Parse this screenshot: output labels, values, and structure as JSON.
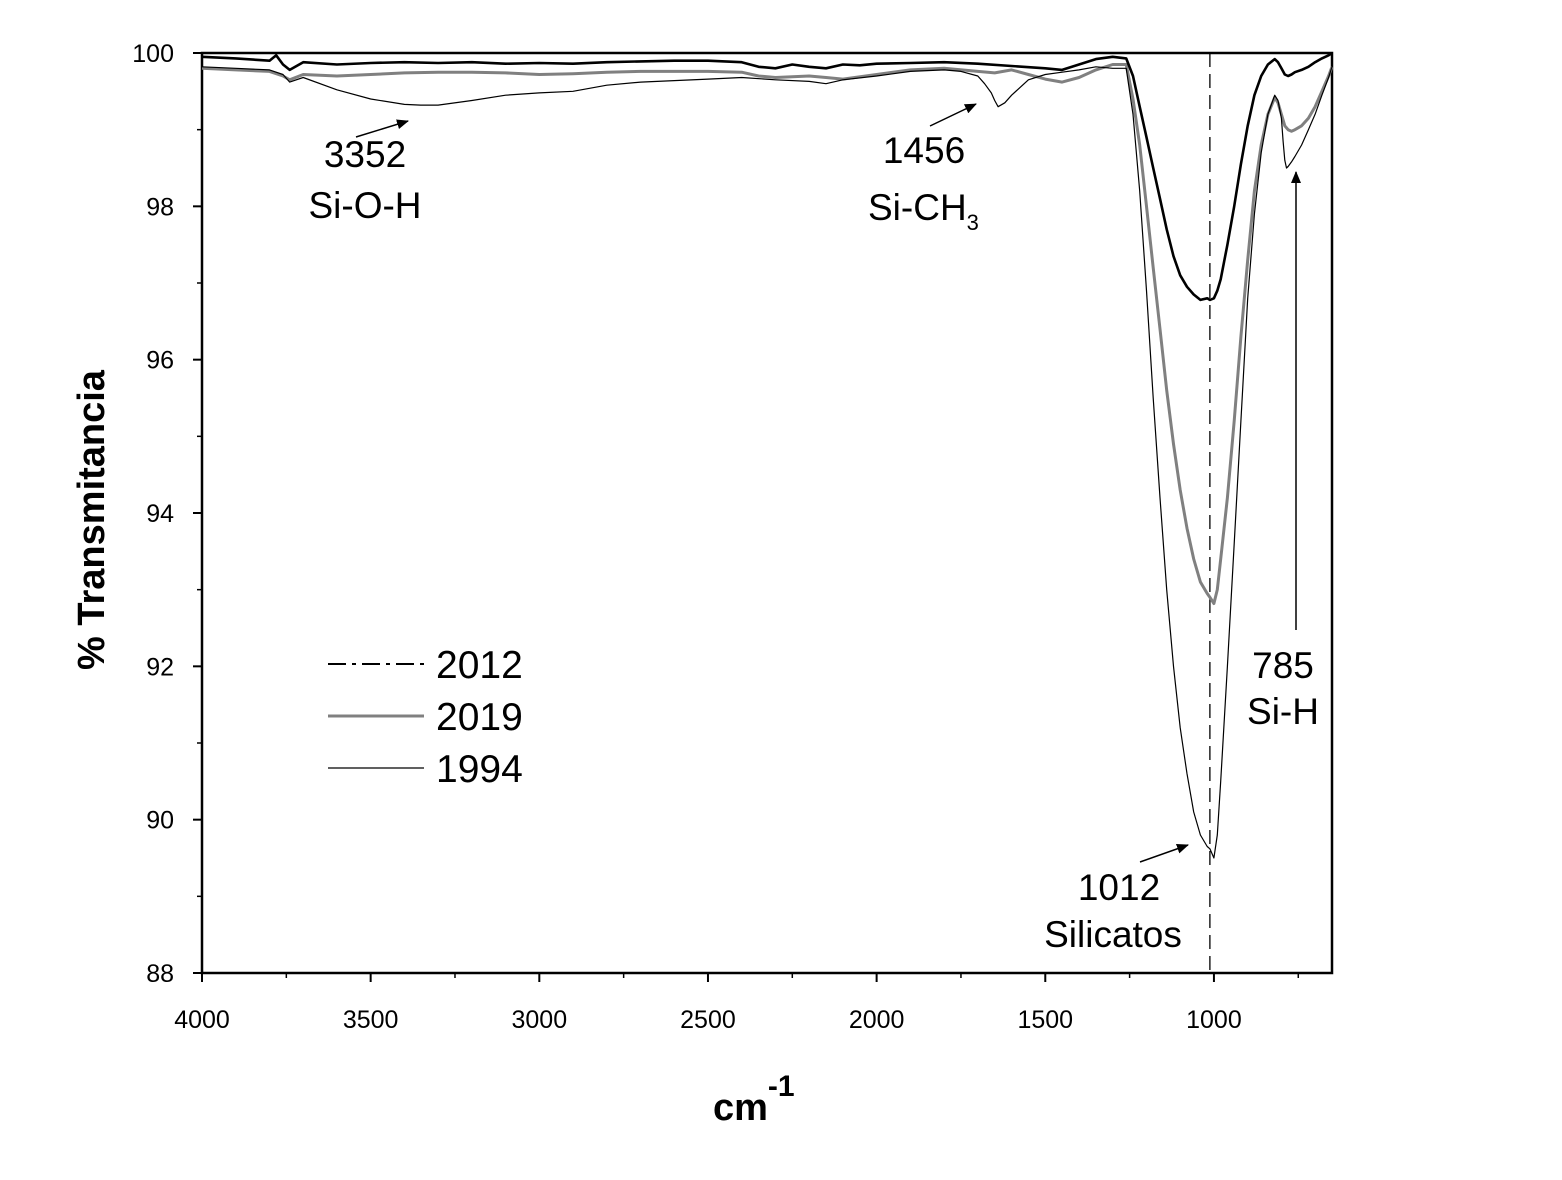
{
  "chart_data": {
    "type": "line",
    "title": "",
    "xlabel": "cm",
    "xlabel_superscript": "-1",
    "ylabel": "% Transmitancia",
    "xlim": [
      4000,
      650
    ],
    "x_reversed": true,
    "ylim": [
      88,
      100
    ],
    "x_ticks": [
      4000,
      3500,
      3000,
      2500,
      2000,
      1500,
      1000
    ],
    "x_tick_labels": [
      "4000",
      "3500",
      "3000",
      "2500",
      "2000",
      "1500",
      "1000"
    ],
    "y_ticks": [
      88,
      90,
      92,
      94,
      96,
      98,
      100
    ],
    "y_tick_labels": [
      "88",
      "90",
      "92",
      "94",
      "96",
      "98",
      "100"
    ],
    "grid": false,
    "legend_position": "left-lower",
    "series": [
      {
        "name": "2012",
        "color": "#000000",
        "line_style": "dash-dot-legend",
        "x": [
          4000,
          3900,
          3800,
          3780,
          3760,
          3740,
          3700,
          3600,
          3500,
          3400,
          3300,
          3200,
          3100,
          3000,
          2900,
          2800,
          2700,
          2600,
          2500,
          2400,
          2350,
          2300,
          2250,
          2200,
          2150,
          2100,
          2050,
          2000,
          1900,
          1800,
          1700,
          1600,
          1500,
          1450,
          1400,
          1350,
          1300,
          1260,
          1240,
          1220,
          1200,
          1180,
          1160,
          1140,
          1120,
          1100,
          1080,
          1060,
          1040,
          1020,
          1012,
          1000,
          990,
          980,
          960,
          940,
          920,
          900,
          880,
          860,
          840,
          820,
          810,
          800,
          790,
          780,
          770,
          760,
          740,
          720,
          700,
          680,
          660,
          650
        ],
        "y": [
          99.95,
          99.93,
          99.9,
          99.97,
          99.85,
          99.78,
          99.88,
          99.85,
          99.87,
          99.88,
          99.87,
          99.88,
          99.86,
          99.87,
          99.86,
          99.88,
          99.89,
          99.9,
          99.9,
          99.88,
          99.82,
          99.8,
          99.85,
          99.82,
          99.8,
          99.85,
          99.84,
          99.86,
          99.87,
          99.88,
          99.86,
          99.83,
          99.8,
          99.78,
          99.85,
          99.92,
          99.95,
          99.93,
          99.7,
          99.3,
          98.9,
          98.5,
          98.1,
          97.7,
          97.35,
          97.1,
          96.95,
          96.85,
          96.78,
          96.8,
          96.78,
          96.8,
          96.9,
          97.05,
          97.5,
          98.0,
          98.55,
          99.05,
          99.45,
          99.7,
          99.85,
          99.92,
          99.88,
          99.8,
          99.72,
          99.7,
          99.72,
          99.75,
          99.78,
          99.82,
          99.88,
          99.93,
          99.97,
          100.0
        ]
      },
      {
        "name": "2019",
        "color": "#808080",
        "line_style": "solid-thick",
        "x": [
          4000,
          3900,
          3800,
          3760,
          3740,
          3700,
          3600,
          3500,
          3400,
          3300,
          3200,
          3100,
          3000,
          2900,
          2800,
          2700,
          2600,
          2500,
          2400,
          2350,
          2300,
          2200,
          2150,
          2100,
          2000,
          1900,
          1800,
          1700,
          1650,
          1600,
          1550,
          1500,
          1450,
          1400,
          1350,
          1300,
          1260,
          1240,
          1220,
          1200,
          1180,
          1160,
          1140,
          1120,
          1100,
          1080,
          1060,
          1040,
          1020,
          1012,
          1000,
          990,
          980,
          960,
          940,
          920,
          900,
          880,
          860,
          840,
          820,
          810,
          800,
          790,
          780,
          770,
          760,
          740,
          720,
          700,
          680,
          660,
          650
        ],
        "y": [
          99.8,
          99.78,
          99.76,
          99.7,
          99.65,
          99.72,
          99.7,
          99.72,
          99.74,
          99.75,
          99.75,
          99.74,
          99.72,
          99.73,
          99.75,
          99.76,
          99.76,
          99.76,
          99.75,
          99.7,
          99.68,
          99.7,
          99.68,
          99.66,
          99.72,
          99.78,
          99.8,
          99.76,
          99.74,
          99.78,
          99.72,
          99.66,
          99.62,
          99.68,
          99.78,
          99.85,
          99.85,
          99.4,
          98.8,
          98.0,
          97.2,
          96.4,
          95.6,
          94.9,
          94.3,
          93.8,
          93.4,
          93.1,
          92.95,
          92.9,
          92.82,
          93.0,
          93.4,
          94.2,
          95.2,
          96.3,
          97.3,
          98.2,
          98.8,
          99.2,
          99.42,
          99.35,
          99.2,
          99.05,
          99.0,
          98.98,
          99.0,
          99.05,
          99.15,
          99.3,
          99.5,
          99.7,
          99.82
        ]
      },
      {
        "name": "1994",
        "color": "#000000",
        "line_style": "solid-thin",
        "x": [
          4000,
          3900,
          3800,
          3760,
          3740,
          3700,
          3600,
          3500,
          3400,
          3352,
          3300,
          3200,
          3100,
          3000,
          2900,
          2800,
          2700,
          2600,
          2500,
          2400,
          2300,
          2200,
          2150,
          2100,
          2000,
          1900,
          1800,
          1750,
          1700,
          1680,
          1660,
          1650,
          1640,
          1620,
          1600,
          1550,
          1500,
          1450,
          1400,
          1350,
          1300,
          1260,
          1240,
          1220,
          1200,
          1180,
          1160,
          1140,
          1120,
          1100,
          1080,
          1060,
          1040,
          1020,
          1012,
          1000,
          990,
          980,
          960,
          940,
          920,
          900,
          880,
          860,
          840,
          820,
          810,
          800,
          795,
          790,
          785,
          780,
          770,
          760,
          740,
          720,
          700,
          680,
          660,
          650
        ],
        "y": [
          99.82,
          99.8,
          99.78,
          99.72,
          99.62,
          99.68,
          99.52,
          99.4,
          99.33,
          99.32,
          99.32,
          99.38,
          99.45,
          99.48,
          99.5,
          99.58,
          99.62,
          99.64,
          99.66,
          99.68,
          99.65,
          99.63,
          99.6,
          99.65,
          99.7,
          99.76,
          99.78,
          99.76,
          99.7,
          99.6,
          99.48,
          99.38,
          99.3,
          99.35,
          99.45,
          99.65,
          99.72,
          99.75,
          99.78,
          99.82,
          99.8,
          99.8,
          99.2,
          98.2,
          96.9,
          95.5,
          94.2,
          93.0,
          92.0,
          91.2,
          90.6,
          90.1,
          89.8,
          89.65,
          89.62,
          89.5,
          89.8,
          90.5,
          92.0,
          93.6,
          95.2,
          96.8,
          97.9,
          98.7,
          99.2,
          99.45,
          99.38,
          99.15,
          98.85,
          98.6,
          98.5,
          98.52,
          98.58,
          98.65,
          98.8,
          99.0,
          99.2,
          99.45,
          99.68,
          99.82
        ]
      }
    ],
    "reference_line": {
      "x": 1012,
      "style": "dashed"
    },
    "annotations": [
      {
        "lines": [
          "3352",
          "Si-O-H"
        ],
        "peak": 3352
      },
      {
        "lines": [
          "1456",
          "Si-CH",
          "3"
        ],
        "peak": 1456
      },
      {
        "lines": [
          "1012",
          "Silicatos"
        ],
        "peak": 1012
      },
      {
        "lines": [
          "785",
          "Si-H"
        ],
        "peak": 785
      }
    ]
  }
}
